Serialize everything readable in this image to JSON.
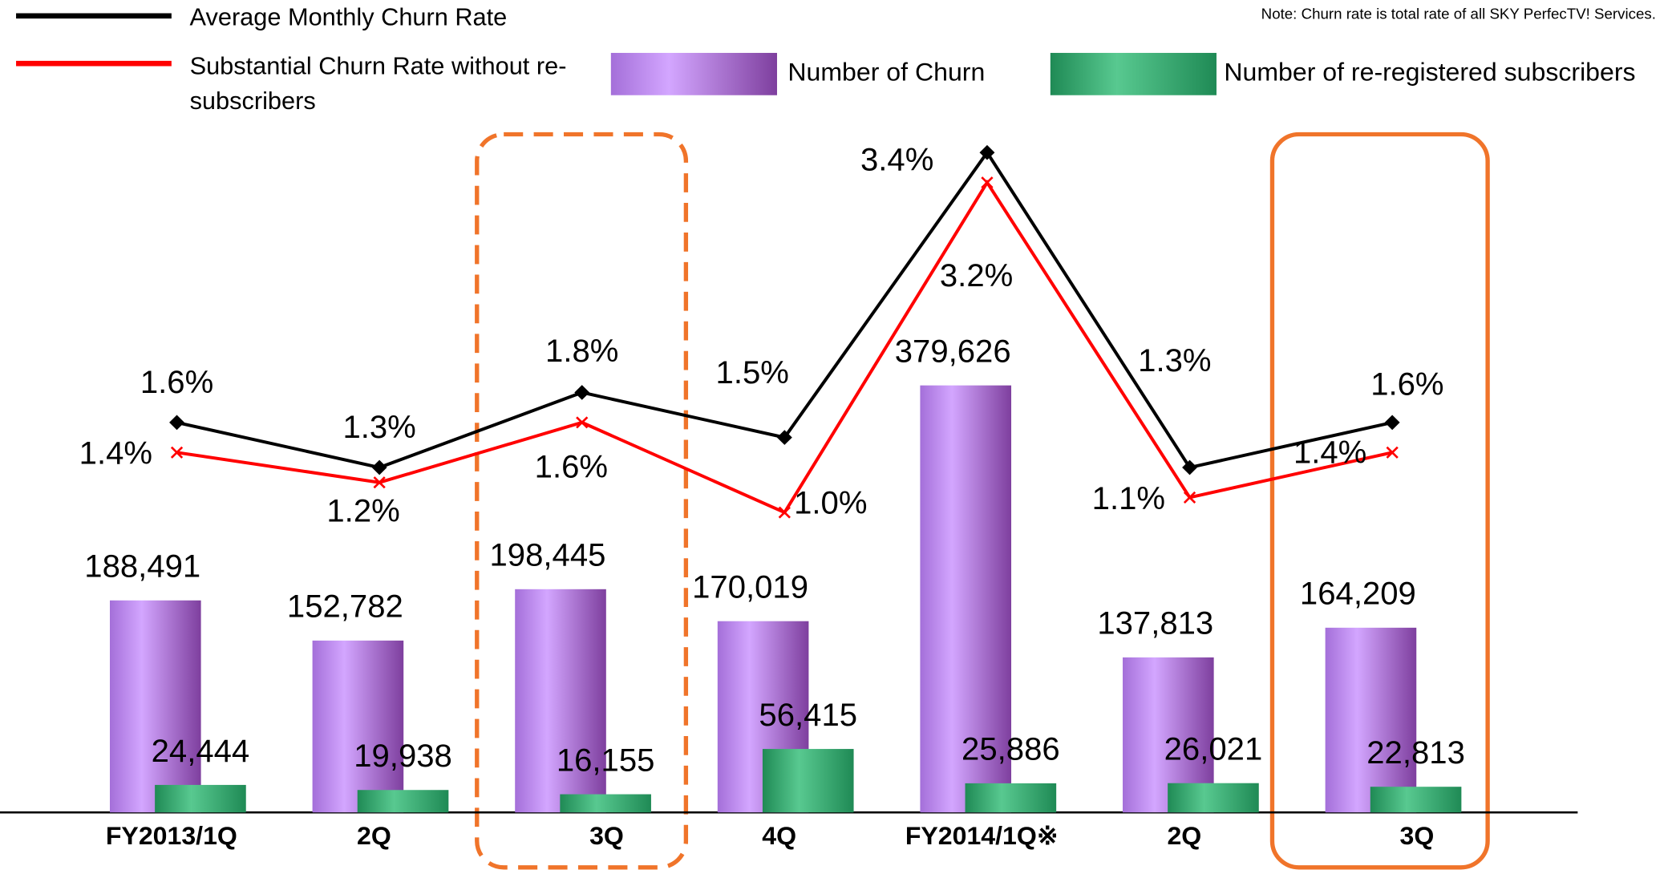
{
  "chart_data": {
    "type": "bar",
    "note": "Note: Churn rate is total rate of all SKY PerfecTV! Services.",
    "categories": [
      "FY2013/1Q",
      "2Q",
      "3Q",
      "4Q",
      "FY2014/1Q※",
      "2Q",
      "3Q"
    ],
    "series": [
      {
        "name": "Average Monthly Churn Rate",
        "type": "line",
        "axis": "y2",
        "color": "#000000",
        "values": [
          1.6,
          1.3,
          1.8,
          1.5,
          3.4,
          1.3,
          1.6
        ],
        "value_labels": [
          "1.6%",
          "1.3%",
          "1.8%",
          "1.5%",
          "3.4%",
          "1.3%",
          "1.6%"
        ]
      },
      {
        "name": "Substantial Churn Rate without re-subscribers",
        "type": "line",
        "axis": "y2",
        "color": "#ff0000",
        "values": [
          1.4,
          1.2,
          1.6,
          1.0,
          3.2,
          1.1,
          1.4
        ],
        "value_labels": [
          "1.4%",
          "1.2%",
          "1.6%",
          "1.0%",
          "3.2%",
          "1.1%",
          "1.4%"
        ]
      },
      {
        "name": "Number of Churn",
        "type": "bar",
        "color": "#b57ee6",
        "values": [
          188491,
          152782,
          198445,
          170019,
          379626,
          137813,
          164209
        ],
        "value_labels": [
          "188,491",
          "152,782",
          "198,445",
          "170,019",
          "379,626",
          "137,813",
          "164,209"
        ]
      },
      {
        "name": "Number of re-registered subscribers",
        "type": "bar",
        "color": "#2fa36b",
        "values": [
          24444,
          19938,
          16155,
          56415,
          25886,
          26021,
          22813
        ],
        "value_labels": [
          "24,444",
          "19,938",
          "16,155",
          "56,415",
          "25,886",
          "26,021",
          "22,813"
        ]
      }
    ],
    "ylim": [
      0,
      600000
    ],
    "y2lim": [
      -1,
      3.5
    ]
  }
}
